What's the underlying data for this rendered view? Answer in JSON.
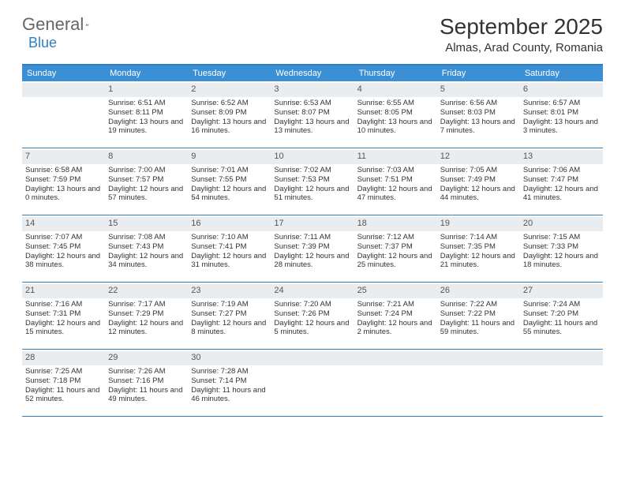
{
  "brand": {
    "part1": "General",
    "part2": "Blue"
  },
  "title": "September 2025",
  "location": "Almas, Arad County, Romania",
  "colors": {
    "header_bar": "#3b8fd4",
    "accent": "#2f7fc1",
    "daynum_bg": "#e9edef",
    "text": "#333333"
  },
  "dow": [
    "Sunday",
    "Monday",
    "Tuesday",
    "Wednesday",
    "Thursday",
    "Friday",
    "Saturday"
  ],
  "weeks": [
    [
      {
        "n": "",
        "sr": "",
        "ss": "",
        "dl": ""
      },
      {
        "n": "1",
        "sr": "Sunrise: 6:51 AM",
        "ss": "Sunset: 8:11 PM",
        "dl": "Daylight: 13 hours and 19 minutes."
      },
      {
        "n": "2",
        "sr": "Sunrise: 6:52 AM",
        "ss": "Sunset: 8:09 PM",
        "dl": "Daylight: 13 hours and 16 minutes."
      },
      {
        "n": "3",
        "sr": "Sunrise: 6:53 AM",
        "ss": "Sunset: 8:07 PM",
        "dl": "Daylight: 13 hours and 13 minutes."
      },
      {
        "n": "4",
        "sr": "Sunrise: 6:55 AM",
        "ss": "Sunset: 8:05 PM",
        "dl": "Daylight: 13 hours and 10 minutes."
      },
      {
        "n": "5",
        "sr": "Sunrise: 6:56 AM",
        "ss": "Sunset: 8:03 PM",
        "dl": "Daylight: 13 hours and 7 minutes."
      },
      {
        "n": "6",
        "sr": "Sunrise: 6:57 AM",
        "ss": "Sunset: 8:01 PM",
        "dl": "Daylight: 13 hours and 3 minutes."
      }
    ],
    [
      {
        "n": "7",
        "sr": "Sunrise: 6:58 AM",
        "ss": "Sunset: 7:59 PM",
        "dl": "Daylight: 13 hours and 0 minutes."
      },
      {
        "n": "8",
        "sr": "Sunrise: 7:00 AM",
        "ss": "Sunset: 7:57 PM",
        "dl": "Daylight: 12 hours and 57 minutes."
      },
      {
        "n": "9",
        "sr": "Sunrise: 7:01 AM",
        "ss": "Sunset: 7:55 PM",
        "dl": "Daylight: 12 hours and 54 minutes."
      },
      {
        "n": "10",
        "sr": "Sunrise: 7:02 AM",
        "ss": "Sunset: 7:53 PM",
        "dl": "Daylight: 12 hours and 51 minutes."
      },
      {
        "n": "11",
        "sr": "Sunrise: 7:03 AM",
        "ss": "Sunset: 7:51 PM",
        "dl": "Daylight: 12 hours and 47 minutes."
      },
      {
        "n": "12",
        "sr": "Sunrise: 7:05 AM",
        "ss": "Sunset: 7:49 PM",
        "dl": "Daylight: 12 hours and 44 minutes."
      },
      {
        "n": "13",
        "sr": "Sunrise: 7:06 AM",
        "ss": "Sunset: 7:47 PM",
        "dl": "Daylight: 12 hours and 41 minutes."
      }
    ],
    [
      {
        "n": "14",
        "sr": "Sunrise: 7:07 AM",
        "ss": "Sunset: 7:45 PM",
        "dl": "Daylight: 12 hours and 38 minutes."
      },
      {
        "n": "15",
        "sr": "Sunrise: 7:08 AM",
        "ss": "Sunset: 7:43 PM",
        "dl": "Daylight: 12 hours and 34 minutes."
      },
      {
        "n": "16",
        "sr": "Sunrise: 7:10 AM",
        "ss": "Sunset: 7:41 PM",
        "dl": "Daylight: 12 hours and 31 minutes."
      },
      {
        "n": "17",
        "sr": "Sunrise: 7:11 AM",
        "ss": "Sunset: 7:39 PM",
        "dl": "Daylight: 12 hours and 28 minutes."
      },
      {
        "n": "18",
        "sr": "Sunrise: 7:12 AM",
        "ss": "Sunset: 7:37 PM",
        "dl": "Daylight: 12 hours and 25 minutes."
      },
      {
        "n": "19",
        "sr": "Sunrise: 7:14 AM",
        "ss": "Sunset: 7:35 PM",
        "dl": "Daylight: 12 hours and 21 minutes."
      },
      {
        "n": "20",
        "sr": "Sunrise: 7:15 AM",
        "ss": "Sunset: 7:33 PM",
        "dl": "Daylight: 12 hours and 18 minutes."
      }
    ],
    [
      {
        "n": "21",
        "sr": "Sunrise: 7:16 AM",
        "ss": "Sunset: 7:31 PM",
        "dl": "Daylight: 12 hours and 15 minutes."
      },
      {
        "n": "22",
        "sr": "Sunrise: 7:17 AM",
        "ss": "Sunset: 7:29 PM",
        "dl": "Daylight: 12 hours and 12 minutes."
      },
      {
        "n": "23",
        "sr": "Sunrise: 7:19 AM",
        "ss": "Sunset: 7:27 PM",
        "dl": "Daylight: 12 hours and 8 minutes."
      },
      {
        "n": "24",
        "sr": "Sunrise: 7:20 AM",
        "ss": "Sunset: 7:26 PM",
        "dl": "Daylight: 12 hours and 5 minutes."
      },
      {
        "n": "25",
        "sr": "Sunrise: 7:21 AM",
        "ss": "Sunset: 7:24 PM",
        "dl": "Daylight: 12 hours and 2 minutes."
      },
      {
        "n": "26",
        "sr": "Sunrise: 7:22 AM",
        "ss": "Sunset: 7:22 PM",
        "dl": "Daylight: 11 hours and 59 minutes."
      },
      {
        "n": "27",
        "sr": "Sunrise: 7:24 AM",
        "ss": "Sunset: 7:20 PM",
        "dl": "Daylight: 11 hours and 55 minutes."
      }
    ],
    [
      {
        "n": "28",
        "sr": "Sunrise: 7:25 AM",
        "ss": "Sunset: 7:18 PM",
        "dl": "Daylight: 11 hours and 52 minutes."
      },
      {
        "n": "29",
        "sr": "Sunrise: 7:26 AM",
        "ss": "Sunset: 7:16 PM",
        "dl": "Daylight: 11 hours and 49 minutes."
      },
      {
        "n": "30",
        "sr": "Sunrise: 7:28 AM",
        "ss": "Sunset: 7:14 PM",
        "dl": "Daylight: 11 hours and 46 minutes."
      },
      {
        "n": "",
        "sr": "",
        "ss": "",
        "dl": ""
      },
      {
        "n": "",
        "sr": "",
        "ss": "",
        "dl": ""
      },
      {
        "n": "",
        "sr": "",
        "ss": "",
        "dl": ""
      },
      {
        "n": "",
        "sr": "",
        "ss": "",
        "dl": ""
      }
    ]
  ]
}
